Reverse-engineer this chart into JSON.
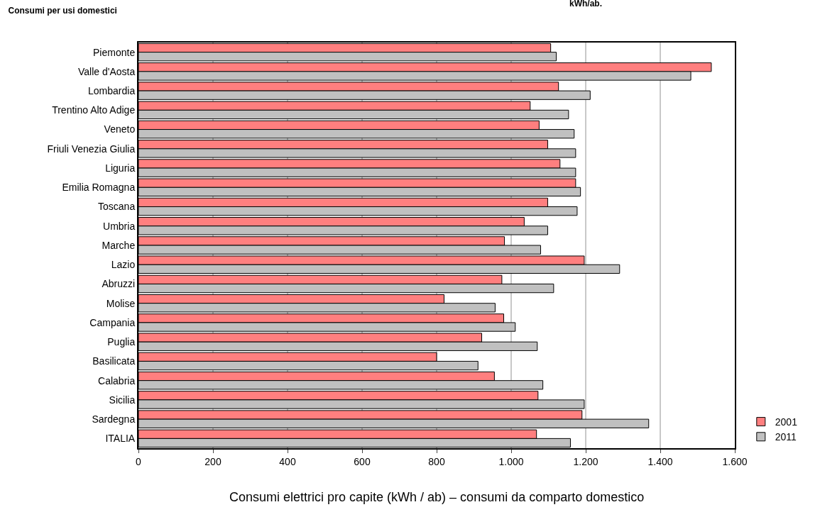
{
  "chart_data": {
    "type": "bar",
    "orientation": "horizontal",
    "title": "Consumi per usi domestici",
    "annotations": [
      "kWh/ab.",
      "Consumi elettrici pro capite (kWh / ab) – consumi da comparto domestico"
    ],
    "categories": [
      "Piemonte",
      "Valle d'Aosta",
      "Lombardia",
      "Trentino Alto Adige",
      "Veneto",
      "Friuli Venezia Giulia",
      "Liguria",
      "Emilia Romagna",
      "Toscana",
      "Umbria",
      "Marche",
      "Lazio",
      "Abruzzi",
      "Molise",
      "Campania",
      "Puglia",
      "Basilicata",
      "Calabria",
      "Sicilia",
      "Sardegna",
      "ITALIA"
    ],
    "series": [
      {
        "name": "2001",
        "color": "#ff7f7f",
        "values": [
          1106,
          1537,
          1127,
          1051,
          1075,
          1098,
          1131,
          1173,
          1098,
          1035,
          982,
          1196,
          975,
          820,
          980,
          921,
          800,
          955,
          1072,
          1190,
          1068
        ]
      },
      {
        "name": "2011",
        "color": "#c0c0c0",
        "values": [
          1121,
          1482,
          1212,
          1154,
          1169,
          1173,
          1173,
          1186,
          1177,
          1098,
          1079,
          1291,
          1114,
          957,
          1011,
          1070,
          911,
          1085,
          1196,
          1369,
          1159
        ]
      }
    ],
    "xlim": [
      0,
      1600
    ],
    "xticks": [
      0,
      200,
      400,
      600,
      800,
      {
        "value": 1000,
        "label": "1.000"
      },
      {
        "value": 1200,
        "label": "1.200"
      },
      {
        "value": 1400,
        "label": "1.400"
      },
      {
        "value": 1600,
        "label": "1.600"
      }
    ],
    "grid": "x",
    "legend": "bottom right"
  }
}
